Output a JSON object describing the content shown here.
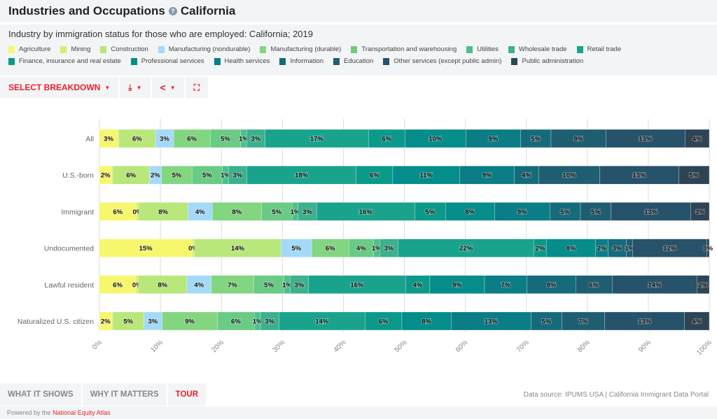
{
  "header": {
    "title": "Industries and Occupations",
    "help_icon": "?",
    "place": "California"
  },
  "subtitle": "Industry by immigration status for those who are employed: California; 2019",
  "toolbar": {
    "select_breakdown": "SELECT BREAKDOWN"
  },
  "tabs": [
    "WHAT IT SHOWS",
    "WHY IT MATTERS",
    "TOUR"
  ],
  "source": "Data source: IPUMS USA | California Immigrant Data Portal",
  "footer": {
    "prefix": "Powered by the",
    "link": "National Equity Atlas"
  },
  "chart_data": {
    "type": "bar",
    "stacked": true,
    "orientation": "horizontal",
    "title": "Industry by immigration status for those who are employed: California; 2019",
    "categories": [
      "All",
      "U.S.-born",
      "Immigrant",
      "Undocumented",
      "Lawful resident",
      "Naturalized U.S. citizen"
    ],
    "xlim": [
      0,
      100
    ],
    "xticks": [
      "0%",
      "10%",
      "20%",
      "30%",
      "40%",
      "50%",
      "60%",
      "70%",
      "80%",
      "90%",
      "100%"
    ],
    "legend_placement": "top",
    "series": [
      {
        "name": "Agriculture",
        "color": "#f7f76e",
        "values": [
          3,
          2,
          6,
          15,
          6,
          2
        ]
      },
      {
        "name": "Mining",
        "color": "#d6ef72",
        "values": [
          0.2,
          0.2,
          0.4,
          0.4,
          0.4,
          0.2
        ]
      },
      {
        "name": "Construction",
        "color": "#b9e77a",
        "values": [
          6,
          6,
          8,
          14,
          8,
          5
        ]
      },
      {
        "name": "Manufacturing (nondurable)",
        "color": "#a4daf8",
        "values": [
          3,
          2,
          4,
          5,
          4,
          3
        ]
      },
      {
        "name": "Manufacturing (durable)",
        "color": "#82d680",
        "values": [
          6,
          5,
          8,
          6,
          7,
          9
        ]
      },
      {
        "name": "Transportation and warehousing",
        "color": "#6acb84",
        "values": [
          5,
          5,
          5,
          4,
          5,
          6
        ]
      },
      {
        "name": "Utilities",
        "color": "#4fbf8b",
        "values": [
          1,
          1,
          1,
          1,
          1,
          1
        ]
      },
      {
        "name": "Wholesale trade",
        "color": "#3bb18c",
        "values": [
          3,
          3,
          3,
          3,
          3,
          3
        ]
      },
      {
        "name": "Retail trade",
        "color": "#19a38d",
        "values": [
          17,
          18,
          16,
          22,
          16,
          14
        ]
      },
      {
        "name": "Finance, insurance and real estate",
        "color": "#0b998a",
        "values": [
          6,
          6,
          5,
          2,
          4,
          6
        ]
      },
      {
        "name": "Professional services",
        "color": "#048d8a",
        "values": [
          10,
          11,
          8,
          8,
          9,
          8
        ]
      },
      {
        "name": "Health services",
        "color": "#0a7d86",
        "values": [
          9,
          9,
          9,
          2,
          7,
          13
        ]
      },
      {
        "name": "Information",
        "color": "#156b7c",
        "values": [
          5,
          4,
          5,
          3,
          8,
          5
        ]
      },
      {
        "name": "Education",
        "color": "#1e5e71",
        "values": [
          9,
          10,
          5,
          1,
          6,
          7
        ]
      },
      {
        "name": "Other services (except public admin)",
        "color": "#26526a",
        "values": [
          13,
          13,
          13,
          12,
          14,
          13
        ]
      },
      {
        "name": "Public administration",
        "color": "#2d4455",
        "values": [
          4,
          5,
          3,
          0.4,
          2,
          4
        ]
      }
    ]
  }
}
